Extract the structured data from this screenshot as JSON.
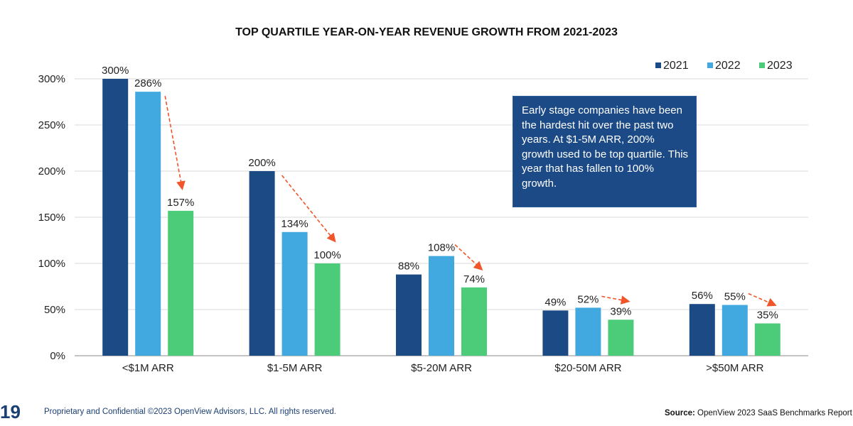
{
  "chart_data": {
    "type": "bar",
    "title": "TOP QUARTILE YEAR-ON-YEAR REVENUE GROWTH FROM 2021-2023",
    "categories": [
      "<$1M ARR",
      "$1-5M ARR",
      "$5-20M ARR",
      "$20-50M ARR",
      ">$50M ARR"
    ],
    "series": [
      {
        "name": "2021",
        "color": "#1b4a85",
        "values": [
          300,
          200,
          88,
          49,
          56
        ]
      },
      {
        "name": "2022",
        "color": "#41a8e0",
        "values": [
          286,
          134,
          108,
          52,
          55
        ]
      },
      {
        "name": "2023",
        "color": "#4ccc78",
        "values": [
          157,
          100,
          74,
          39,
          35
        ]
      }
    ],
    "ylim": [
      0,
      300
    ],
    "yticks": [
      0,
      50,
      100,
      150,
      200,
      250,
      300
    ],
    "ytick_format": "%",
    "grid": true,
    "legend": "top-right",
    "arrow_color": "#f0562a",
    "annotation": "Early stage companies have been the hardest hit over the past two years. At $1-5M ARR, 200% growth used to be top quartile. This year that has fallen to 100% growth."
  },
  "footer": {
    "page_number": "19",
    "copyright": "Proprietary and Confidential ©2023 OpenView Advisors, LLC. All rights reserved.",
    "source_label": "Source:",
    "source_text": "OpenView 2023 SaaS Benchmarks Report"
  }
}
